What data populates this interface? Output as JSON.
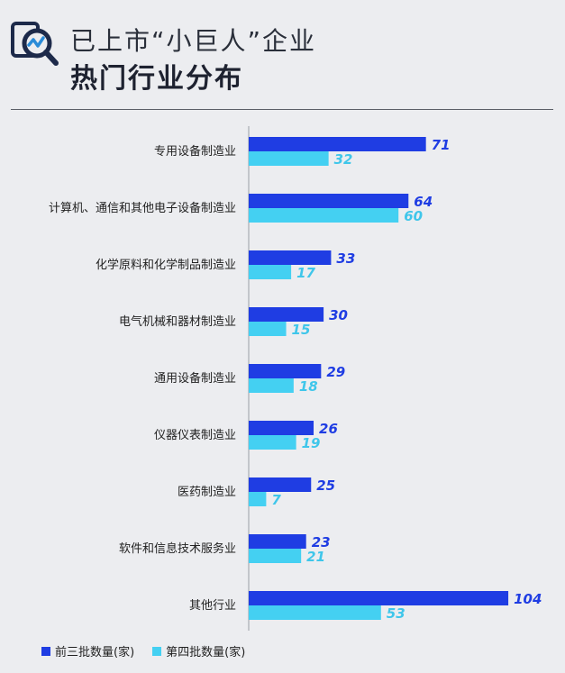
{
  "header": {
    "title_line1": "已上市“小巨人”企业",
    "title_line2": "热门行业分布"
  },
  "colors": {
    "series1": "#1f3de3",
    "series2": "#44d0f2",
    "series1_label": "#1f3de3",
    "series2_label": "#3fc6ea"
  },
  "icons": {
    "logo": "magnifier-chart-icon"
  },
  "chart_data": {
    "type": "bar",
    "orientation": "horizontal",
    "categories": [
      "专用设备制造业",
      "计算机、通信和其他电子设备制造业",
      "化学原料和化学制品制造业",
      "电气机械和器材制造业",
      "通用设备制造业",
      "仪器仪表制造业",
      "医药制造业",
      "软件和信息技术服务业",
      "其他行业"
    ],
    "series": [
      {
        "name": "前三批数量(家)",
        "values": [
          71,
          64,
          33,
          30,
          29,
          26,
          25,
          23,
          104
        ]
      },
      {
        "name": "第四批数量(家)",
        "values": [
          32,
          60,
          17,
          15,
          18,
          19,
          7,
          21,
          53
        ]
      }
    ],
    "xlim": [
      0,
      104
    ],
    "grid": false,
    "legend_position": "bottom-left"
  }
}
